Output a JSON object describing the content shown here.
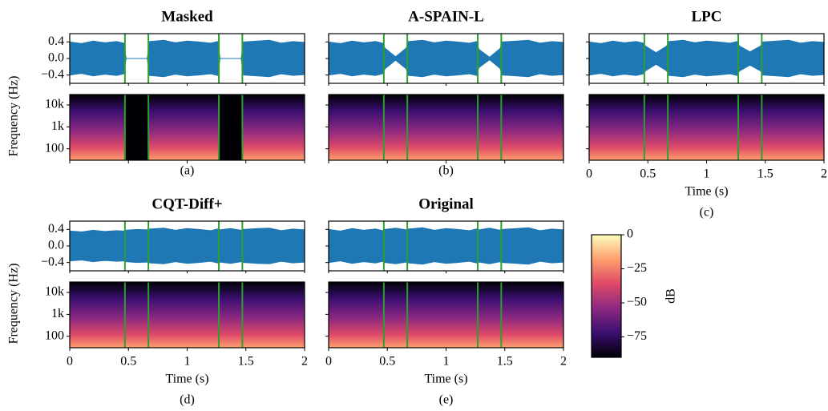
{
  "chart_data": [
    {
      "type": "wave-spectrogram",
      "title": "Masked",
      "label": "(a)",
      "wave_color": "#1f77b4",
      "marker_color": "#2ca02c",
      "x": [
        0,
        0.1,
        0.2,
        0.3,
        0.4,
        0.46,
        0.48,
        0.57,
        0.66,
        0.68,
        0.8,
        0.9,
        1.0,
        1.1,
        1.2,
        1.26,
        1.28,
        1.37,
        1.46,
        1.48,
        1.6,
        1.7,
        1.8,
        1.9,
        2.0
      ],
      "envelope": [
        0.4,
        0.36,
        0.42,
        0.38,
        0.41,
        0.37,
        0,
        0,
        0,
        0.41,
        0.44,
        0.38,
        0.42,
        0.4,
        0.37,
        0.41,
        0,
        0,
        0,
        0.4,
        0.42,
        0.44,
        0.37,
        0.41,
        0.39
      ],
      "markers": [
        0.47,
        0.67,
        1.27,
        1.47
      ],
      "gaps_silent": true,
      "xlim": [
        0,
        2
      ],
      "xticks": [
        0,
        0.5,
        1,
        1.5,
        2
      ],
      "xtick_labels": false,
      "ylim": [
        -0.6,
        0.6
      ],
      "yticks": [
        0.4,
        {
          "value": 0,
          "label": "0.0"
        },
        {
          "value": -0.4,
          "label": "−0.4"
        }
      ],
      "ytick_labels": true,
      "spec_ylim": [
        30,
        30000
      ],
      "spec_log": true,
      "spec_yticks": [
        {
          "value": 10000,
          "label": "10k"
        },
        {
          "value": 1000,
          "label": "1k"
        },
        100
      ],
      "spec_ylabel": "Frequency (Hz)"
    },
    {
      "type": "wave-spectrogram",
      "title": "A-SPAIN-L",
      "label": "(b)",
      "wave_color": "#1f77b4",
      "marker_color": "#2ca02c",
      "x": [
        0,
        0.1,
        0.2,
        0.3,
        0.4,
        0.46,
        0.48,
        0.57,
        0.66,
        0.68,
        0.8,
        0.9,
        1.0,
        1.1,
        1.2,
        1.26,
        1.28,
        1.37,
        1.46,
        1.48,
        1.6,
        1.7,
        1.8,
        1.9,
        2.0
      ],
      "envelope": [
        0.4,
        0.36,
        0.42,
        0.38,
        0.41,
        0.37,
        0.25,
        0.04,
        0.25,
        0.41,
        0.44,
        0.38,
        0.42,
        0.4,
        0.37,
        0.41,
        0.22,
        0.03,
        0.24,
        0.4,
        0.42,
        0.44,
        0.37,
        0.41,
        0.39
      ],
      "markers": [
        0.47,
        0.67,
        1.27,
        1.47
      ],
      "gaps_silent": false,
      "xlim": [
        0,
        2
      ],
      "xticks": [
        0,
        0.5,
        1,
        1.5,
        2
      ],
      "xtick_labels": false,
      "ylim": [
        -0.6,
        0.6
      ],
      "yticks": [
        0.4,
        0,
        -0.4
      ],
      "ytick_labels": false,
      "spec_ylim": [
        30,
        30000
      ],
      "spec_log": true,
      "spec_yticks": [
        10000,
        1000,
        100
      ]
    },
    {
      "type": "wave-spectrogram",
      "title": "LPC",
      "label": "(c)",
      "wave_color": "#1f77b4",
      "marker_color": "#2ca02c",
      "x": [
        0,
        0.1,
        0.2,
        0.3,
        0.4,
        0.46,
        0.48,
        0.57,
        0.66,
        0.68,
        0.8,
        0.9,
        1.0,
        1.1,
        1.2,
        1.26,
        1.28,
        1.37,
        1.46,
        1.48,
        1.6,
        1.7,
        1.8,
        1.9,
        2.0
      ],
      "envelope": [
        0.4,
        0.36,
        0.42,
        0.38,
        0.41,
        0.37,
        0.3,
        0.14,
        0.3,
        0.41,
        0.44,
        0.38,
        0.42,
        0.4,
        0.37,
        0.41,
        0.3,
        0.16,
        0.3,
        0.4,
        0.42,
        0.44,
        0.37,
        0.41,
        0.39
      ],
      "markers": [
        0.47,
        0.67,
        1.27,
        1.47
      ],
      "gaps_silent": false,
      "xlim": [
        0,
        2
      ],
      "xticks": [
        0,
        0.5,
        1,
        1.5,
        2
      ],
      "xtick_labels": true,
      "xlabel": "Time (s)",
      "ylim": [
        -0.6,
        0.6
      ],
      "yticks": [
        0.4,
        0,
        -0.4
      ],
      "ytick_labels": false,
      "spec_ylim": [
        30,
        30000
      ],
      "spec_log": true,
      "spec_yticks": [
        10000,
        1000,
        100
      ]
    },
    {
      "type": "wave-spectrogram",
      "title": "CQT-Diff+",
      "label": "(d)",
      "wave_color": "#1f77b4",
      "marker_color": "#2ca02c",
      "x": [
        0,
        0.1,
        0.2,
        0.3,
        0.4,
        0.46,
        0.48,
        0.57,
        0.66,
        0.68,
        0.8,
        0.9,
        1.0,
        1.1,
        1.2,
        1.26,
        1.28,
        1.37,
        1.46,
        1.48,
        1.6,
        1.7,
        1.8,
        1.9,
        2.0
      ],
      "envelope": [
        0.36,
        0.34,
        0.38,
        0.35,
        0.37,
        0.36,
        0.38,
        0.4,
        0.39,
        0.41,
        0.43,
        0.38,
        0.42,
        0.4,
        0.37,
        0.41,
        0.39,
        0.42,
        0.38,
        0.4,
        0.42,
        0.43,
        0.37,
        0.41,
        0.39
      ],
      "markers": [
        0.47,
        0.67,
        1.27,
        1.47
      ],
      "gaps_silent": false,
      "xlim": [
        0,
        2
      ],
      "xticks": [
        0,
        0.5,
        1,
        1.5,
        2
      ],
      "xtick_labels": true,
      "xlabel": "Time (s)",
      "ylim": [
        -0.6,
        0.6
      ],
      "yticks": [
        0.4,
        {
          "value": 0,
          "label": "0.0"
        },
        {
          "value": -0.4,
          "label": "−0.4"
        }
      ],
      "ytick_labels": true,
      "spec_ylim": [
        30,
        30000
      ],
      "spec_log": true,
      "spec_yticks": [
        {
          "value": 10000,
          "label": "10k"
        },
        {
          "value": 1000,
          "label": "1k"
        },
        100
      ],
      "spec_ylabel": "Frequency (Hz)"
    },
    {
      "type": "wave-spectrogram",
      "title": "Original",
      "label": "(e)",
      "wave_color": "#1f77b4",
      "marker_color": "#2ca02c",
      "x": [
        0,
        0.1,
        0.2,
        0.3,
        0.4,
        0.46,
        0.48,
        0.57,
        0.66,
        0.68,
        0.8,
        0.9,
        1.0,
        1.1,
        1.2,
        1.26,
        1.28,
        1.37,
        1.46,
        1.48,
        1.6,
        1.7,
        1.8,
        1.9,
        2.0
      ],
      "envelope": [
        0.4,
        0.36,
        0.42,
        0.38,
        0.41,
        0.37,
        0.4,
        0.43,
        0.39,
        0.41,
        0.44,
        0.38,
        0.42,
        0.4,
        0.37,
        0.41,
        0.39,
        0.43,
        0.38,
        0.4,
        0.42,
        0.44,
        0.37,
        0.41,
        0.39
      ],
      "markers": [
        0.47,
        0.67,
        1.27,
        1.47
      ],
      "gaps_silent": false,
      "xlim": [
        0,
        2
      ],
      "xticks": [
        0,
        0.5,
        1,
        1.5,
        2
      ],
      "xtick_labels": true,
      "xlabel": "Time (s)",
      "ylim": [
        -0.6,
        0.6
      ],
      "yticks": [
        0.4,
        0,
        -0.4
      ],
      "ytick_labels": false,
      "spec_ylim": [
        30,
        30000
      ],
      "spec_log": true,
      "spec_yticks": [
        10000,
        1000,
        100
      ]
    },
    {
      "type": "colorbar",
      "label": "dB",
      "ylim": [
        -90,
        0
      ],
      "yticks": [
        0,
        {
          "value": -25,
          "label": "−25"
        },
        {
          "value": -50,
          "label": "−50"
        },
        {
          "value": -75,
          "label": "−75"
        }
      ],
      "colors": [
        "#000004",
        "#3b0f70",
        "#8c2981",
        "#de4968",
        "#fe9f6d",
        "#fcfdbf"
      ]
    }
  ]
}
